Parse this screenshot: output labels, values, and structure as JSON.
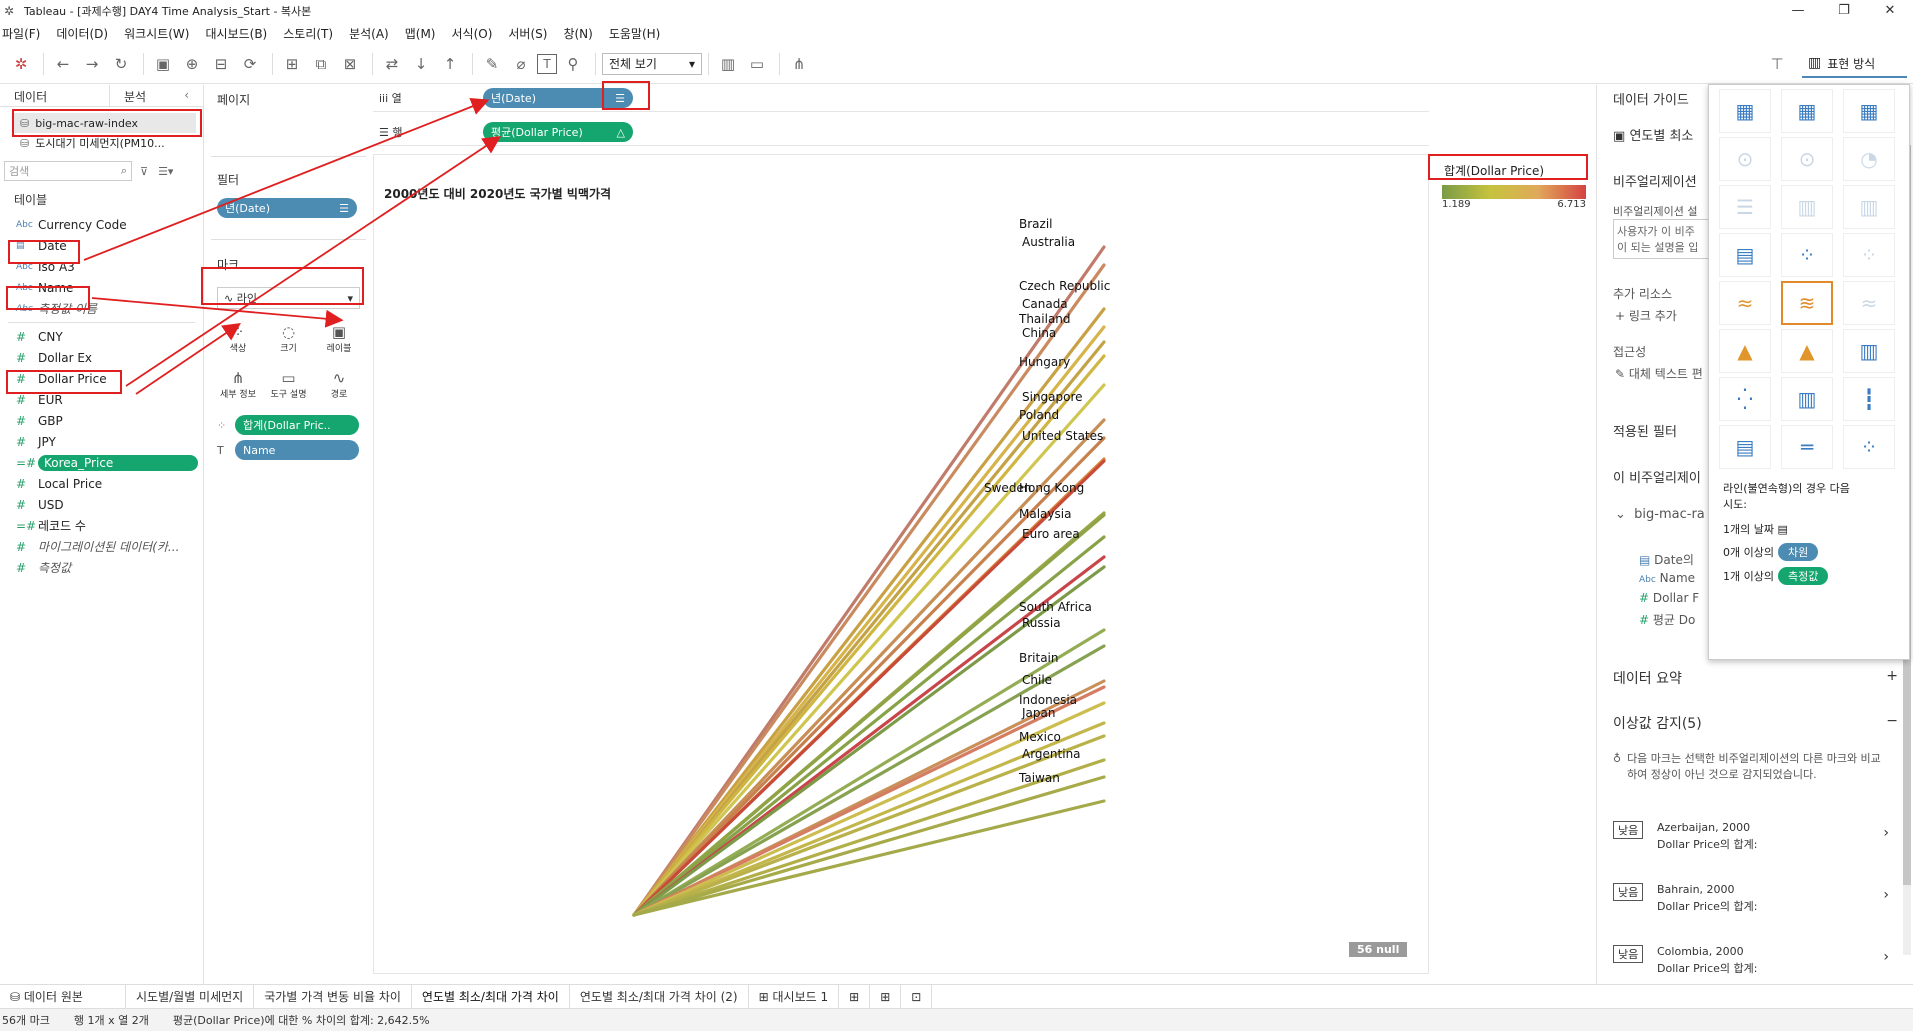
{
  "window": {
    "title": "Tableau - [과제수행] DAY4 Time Analysis_Start - 복사본",
    "controls": [
      "—",
      "❐",
      "✕"
    ]
  },
  "menu": [
    "파일(F)",
    "데이터(D)",
    "워크시트(W)",
    "대시보드(B)",
    "스토리(T)",
    "분석(A)",
    "맵(M)",
    "서식(O)",
    "서버(S)",
    "창(N)",
    "도움말(H)"
  ],
  "toolbar": {
    "view_select": "전체 보기",
    "show_me_label": "표현 방식"
  },
  "datapane": {
    "tab_data": "데이터",
    "tab_analysis": "분석",
    "datasources": [
      "big-mac-raw-index",
      "도시대기 미세먼지(PM10..."
    ],
    "search_placeholder": "검색",
    "tables_label": "테이블",
    "dimensions": [
      {
        "type": "Abc",
        "name": "Currency Code"
      },
      {
        "type": "date",
        "name": "Date"
      },
      {
        "type": "Abc",
        "name": "Iso A3"
      },
      {
        "type": "Abc",
        "name": "Name"
      },
      {
        "type": "Abc",
        "name": "측정값 이름"
      }
    ],
    "measures": [
      {
        "type": "#",
        "name": "CNY"
      },
      {
        "type": "#",
        "name": "Dollar Ex"
      },
      {
        "type": "#",
        "name": "Dollar Price"
      },
      {
        "type": "#",
        "name": "EUR"
      },
      {
        "type": "#",
        "name": "GBP"
      },
      {
        "type": "#",
        "name": "JPY"
      },
      {
        "type": "=#",
        "name": "Korea_Price"
      },
      {
        "type": "#",
        "name": "Local Price"
      },
      {
        "type": "#",
        "name": "USD"
      },
      {
        "type": "=#",
        "name": "레코드 수"
      },
      {
        "type": "#",
        "name": "마이그레이션된 데이터(카..."
      },
      {
        "type": "#",
        "name": "측정값"
      }
    ]
  },
  "cards": {
    "pages_label": "페이지",
    "filters_label": "필터",
    "filter_pill": "년(Date)",
    "marks_label": "마크",
    "mark_type": "라인",
    "mark_buttons": [
      "색상",
      "크기",
      "레이블",
      "세부 정보",
      "도구 설명",
      "경로"
    ],
    "mark_pills": [
      "합계(Dollar Pric..",
      "Name"
    ]
  },
  "shelves": {
    "columns_label": "열",
    "rows_label": "행",
    "columns_pill": "년(Date)",
    "rows_pill": "평균(Dollar Price)"
  },
  "viz": {
    "title": "2000년도 대비 2020년도 국가별 빅맥가격",
    "legend_title": "합계(Dollar Price)",
    "legend_min": "1.189",
    "legend_max": "6.713",
    "null_badge": "56 null",
    "countries": [
      "Brazil",
      "Australia",
      "Czech Republic",
      "Canada",
      "Thailand",
      "China",
      "Hungary",
      "Singapore",
      "Poland",
      "United States",
      "Sweden",
      "Hong Kong",
      "Malaysia",
      "Euro area",
      "South Africa",
      "Russia",
      "Britain",
      "Chile",
      "Indonesia",
      "Japan",
      "Mexico",
      "Argentina",
      "Taiwan"
    ]
  },
  "rightpane": {
    "header": "데이터 가이드",
    "sheet_name": "연도별 최소",
    "viz_desc_label": "비주얼리제이션",
    "viz_desc_sub": "비주얼리제이션 설",
    "placeholder_line1": "사용자가 이 비주",
    "placeholder_line2": "이 되는 설명을 입",
    "resources_label": "추가 리소스",
    "add_link": "링크 추가",
    "accessibility": "접근성",
    "alt_text": "대체 텍스트 편",
    "applied_filters": "적용된 필터",
    "this_viz": "이 비주얼리제이",
    "source": "big-mac-ra",
    "fields": [
      "Date의",
      "Name",
      "Dollar F",
      "평균 Do"
    ],
    "data_summary": "데이터 요약",
    "outliers": "이상값 감지(5)",
    "outlier_desc": "다음 마크는 선택한 비주얼리제이션의 다른 마크와 비교하여 정상이 아닌 것으로 감지되었습니다.",
    "outlier_items": [
      {
        "badge": "낮음",
        "title": "Azerbaijan, 2000",
        "sub": "Dollar Price의 합계:"
      },
      {
        "badge": "낮음",
        "title": "Bahrain, 2000",
        "sub": "Dollar Price의 합계:"
      },
      {
        "badge": "낮음",
        "title": "Colombia, 2000",
        "sub": "Dollar Price의 합계:"
      }
    ]
  },
  "showme": {
    "hint_line1": "라인(불연속형)의 경우 다음",
    "hint_line2": "시도:",
    "req1": "1개의 날짜",
    "req2_prefix": "0개 이상의",
    "req2_pill": "차원",
    "req3_prefix": "1개 이상의",
    "req3_pill": "측정값"
  },
  "tabs": [
    "데이터 원본",
    "시도별/월별 미세먼지",
    "국가별 가격 변동 비율 차이",
    "연도별 최소/최대 가격 차이",
    "연도별 최소/최대 가격 차이 (2)",
    "대시보드 1"
  ],
  "status": {
    "marks": "56개 마크",
    "rows_cols": "행 1개 x 열 2개",
    "summary": "평균(Dollar Price)에 대한 % 차이의 합계: 2,642.5%"
  }
}
